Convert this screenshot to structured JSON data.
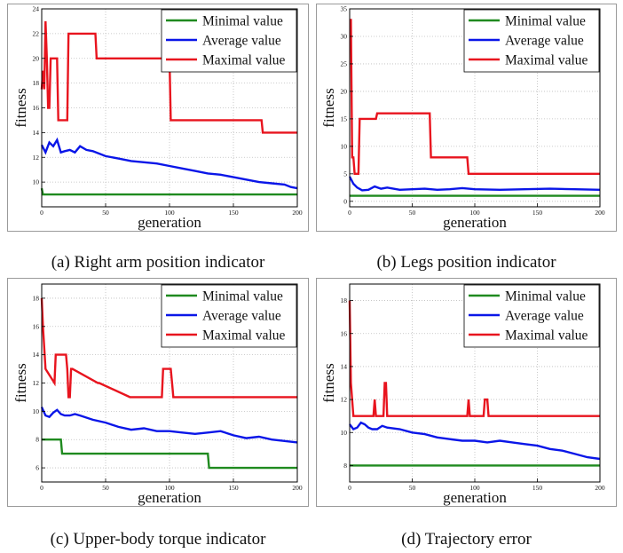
{
  "legend_labels": [
    "Minimal value",
    "Average value",
    "Maximal value"
  ],
  "colors": {
    "min": "#1f8a1f",
    "avg": "#0a16e8",
    "max": "#e8141e",
    "grid": "#bdbdbd",
    "axis": "#000000"
  },
  "chart_data": [
    {
      "type": "line",
      "caption": "(a) Right arm position indicator",
      "xlabel": "generation",
      "ylabel": "fitness",
      "xlim": [
        0,
        200
      ],
      "ylim": [
        8,
        24
      ],
      "xticks": [
        0,
        50,
        100,
        150,
        200
      ],
      "yticks": [
        10,
        12,
        14,
        16,
        18,
        20,
        22,
        24
      ],
      "grid": true,
      "legend": "top-right",
      "series": [
        {
          "name": "Minimal value",
          "x": [
            0,
            1,
            2,
            200
          ],
          "y": [
            9.5,
            9.0,
            9.0,
            9.0
          ]
        },
        {
          "name": "Average value",
          "x": [
            0,
            3,
            6,
            9,
            12,
            15,
            18,
            22,
            26,
            30,
            35,
            40,
            50,
            60,
            70,
            80,
            90,
            100,
            110,
            120,
            130,
            140,
            150,
            160,
            170,
            180,
            190,
            195,
            200
          ],
          "y": [
            13.0,
            12.4,
            13.2,
            12.9,
            13.4,
            12.4,
            12.5,
            12.6,
            12.4,
            12.9,
            12.6,
            12.5,
            12.1,
            11.9,
            11.7,
            11.6,
            11.5,
            11.3,
            11.1,
            10.9,
            10.7,
            10.6,
            10.4,
            10.2,
            10.0,
            9.9,
            9.8,
            9.6,
            9.5
          ]
        },
        {
          "name": "Maximal value",
          "x": [
            0,
            1,
            2,
            3,
            4,
            5,
            6,
            7,
            8,
            12,
            13,
            14,
            20,
            21,
            42,
            43,
            100,
            101,
            172,
            173,
            200
          ],
          "y": [
            17.5,
            19,
            17.5,
            23,
            20,
            16,
            16,
            20,
            20,
            20,
            15,
            15,
            15,
            22,
            22,
            20,
            20,
            15,
            15,
            14,
            14
          ]
        }
      ]
    },
    {
      "type": "line",
      "caption": "(b) Legs position indicator",
      "xlabel": "generation",
      "ylabel": "fitness",
      "xlim": [
        0,
        200
      ],
      "ylim": [
        -1,
        35
      ],
      "xticks": [
        0,
        50,
        100,
        150,
        200
      ],
      "yticks": [
        0,
        5,
        10,
        15,
        20,
        25,
        30,
        35
      ],
      "grid": true,
      "legend": "top-right",
      "series": [
        {
          "name": "Minimal value",
          "x": [
            0,
            200
          ],
          "y": [
            1,
            1
          ]
        },
        {
          "name": "Average value",
          "x": [
            0,
            3,
            6,
            10,
            15,
            20,
            25,
            30,
            40,
            50,
            60,
            70,
            80,
            90,
            100,
            120,
            140,
            160,
            180,
            200
          ],
          "y": [
            4.5,
            3.2,
            2.5,
            2.0,
            2.1,
            2.7,
            2.3,
            2.5,
            2.1,
            2.2,
            2.3,
            2.1,
            2.2,
            2.4,
            2.2,
            2.1,
            2.2,
            2.3,
            2.2,
            2.1
          ]
        },
        {
          "name": "Maximal value",
          "x": [
            0,
            1,
            2,
            3,
            4,
            5,
            6,
            7,
            8,
            9,
            21,
            22,
            64,
            65,
            94,
            95,
            200
          ],
          "y": [
            33,
            33,
            8,
            8,
            5,
            5,
            5,
            5,
            15,
            15,
            15,
            16,
            16,
            8,
            8,
            5,
            5
          ]
        }
      ]
    },
    {
      "type": "line",
      "caption": "(c) Upper-body torque indicator",
      "xlabel": "generation",
      "ylabel": "fitness",
      "xlim": [
        0,
        200
      ],
      "ylim": [
        5,
        19
      ],
      "xticks": [
        0,
        50,
        100,
        150,
        200
      ],
      "yticks": [
        6,
        8,
        10,
        12,
        14,
        16,
        18
      ],
      "grid": true,
      "legend": "top-right",
      "series": [
        {
          "name": "Minimal value",
          "x": [
            0,
            15,
            16,
            130,
            131,
            200
          ],
          "y": [
            8,
            8,
            7,
            7,
            6,
            6
          ]
        },
        {
          "name": "Average value",
          "x": [
            0,
            3,
            6,
            9,
            12,
            15,
            18,
            22,
            26,
            30,
            40,
            50,
            60,
            70,
            80,
            90,
            100,
            110,
            120,
            130,
            140,
            150,
            160,
            170,
            180,
            190,
            200
          ],
          "y": [
            10.3,
            9.7,
            9.6,
            9.9,
            10.1,
            9.8,
            9.7,
            9.7,
            9.8,
            9.7,
            9.4,
            9.2,
            8.9,
            8.7,
            8.8,
            8.6,
            8.6,
            8.5,
            8.4,
            8.5,
            8.6,
            8.3,
            8.1,
            8.2,
            8.0,
            7.9,
            7.8
          ]
        },
        {
          "name": "Maximal value",
          "x": [
            0,
            1,
            3,
            10,
            11,
            19,
            20,
            21,
            22,
            23,
            24,
            44,
            45,
            69,
            70,
            94,
            95,
            101,
            102,
            103,
            104,
            200
          ],
          "y": [
            18,
            16,
            13,
            12,
            14,
            14,
            13,
            11,
            11,
            13,
            13,
            12,
            12,
            11,
            11,
            11,
            13,
            13,
            12,
            11,
            11,
            11
          ]
        }
      ]
    },
    {
      "type": "line",
      "caption": "(d) Trajectory error",
      "xlabel": "generation",
      "ylabel": "fitness",
      "xlim": [
        0,
        200
      ],
      "ylim": [
        7,
        19
      ],
      "xticks": [
        0,
        50,
        100,
        150,
        200
      ],
      "yticks": [
        8,
        10,
        12,
        14,
        16,
        18
      ],
      "grid": true,
      "legend": "top-right",
      "series": [
        {
          "name": "Minimal value",
          "x": [
            0,
            200
          ],
          "y": [
            8,
            8
          ]
        },
        {
          "name": "Average value",
          "x": [
            0,
            3,
            6,
            9,
            12,
            15,
            18,
            22,
            26,
            30,
            40,
            50,
            60,
            70,
            80,
            90,
            100,
            110,
            120,
            130,
            140,
            150,
            160,
            170,
            180,
            190,
            200
          ],
          "y": [
            10.5,
            10.2,
            10.3,
            10.6,
            10.5,
            10.3,
            10.2,
            10.2,
            10.4,
            10.3,
            10.2,
            10.0,
            9.9,
            9.7,
            9.6,
            9.5,
            9.5,
            9.4,
            9.5,
            9.4,
            9.3,
            9.2,
            9.0,
            8.9,
            8.7,
            8.5,
            8.4
          ]
        },
        {
          "name": "Maximal value",
          "x": [
            0,
            1,
            2,
            3,
            4,
            19,
            20,
            21,
            27,
            28,
            29,
            30,
            94,
            95,
            96,
            107,
            108,
            110,
            111,
            200
          ],
          "y": [
            18,
            13,
            12,
            11,
            11,
            11,
            12,
            11,
            11,
            13,
            13,
            11,
            11,
            12,
            11,
            11,
            12,
            12,
            11,
            11
          ]
        }
      ]
    }
  ]
}
